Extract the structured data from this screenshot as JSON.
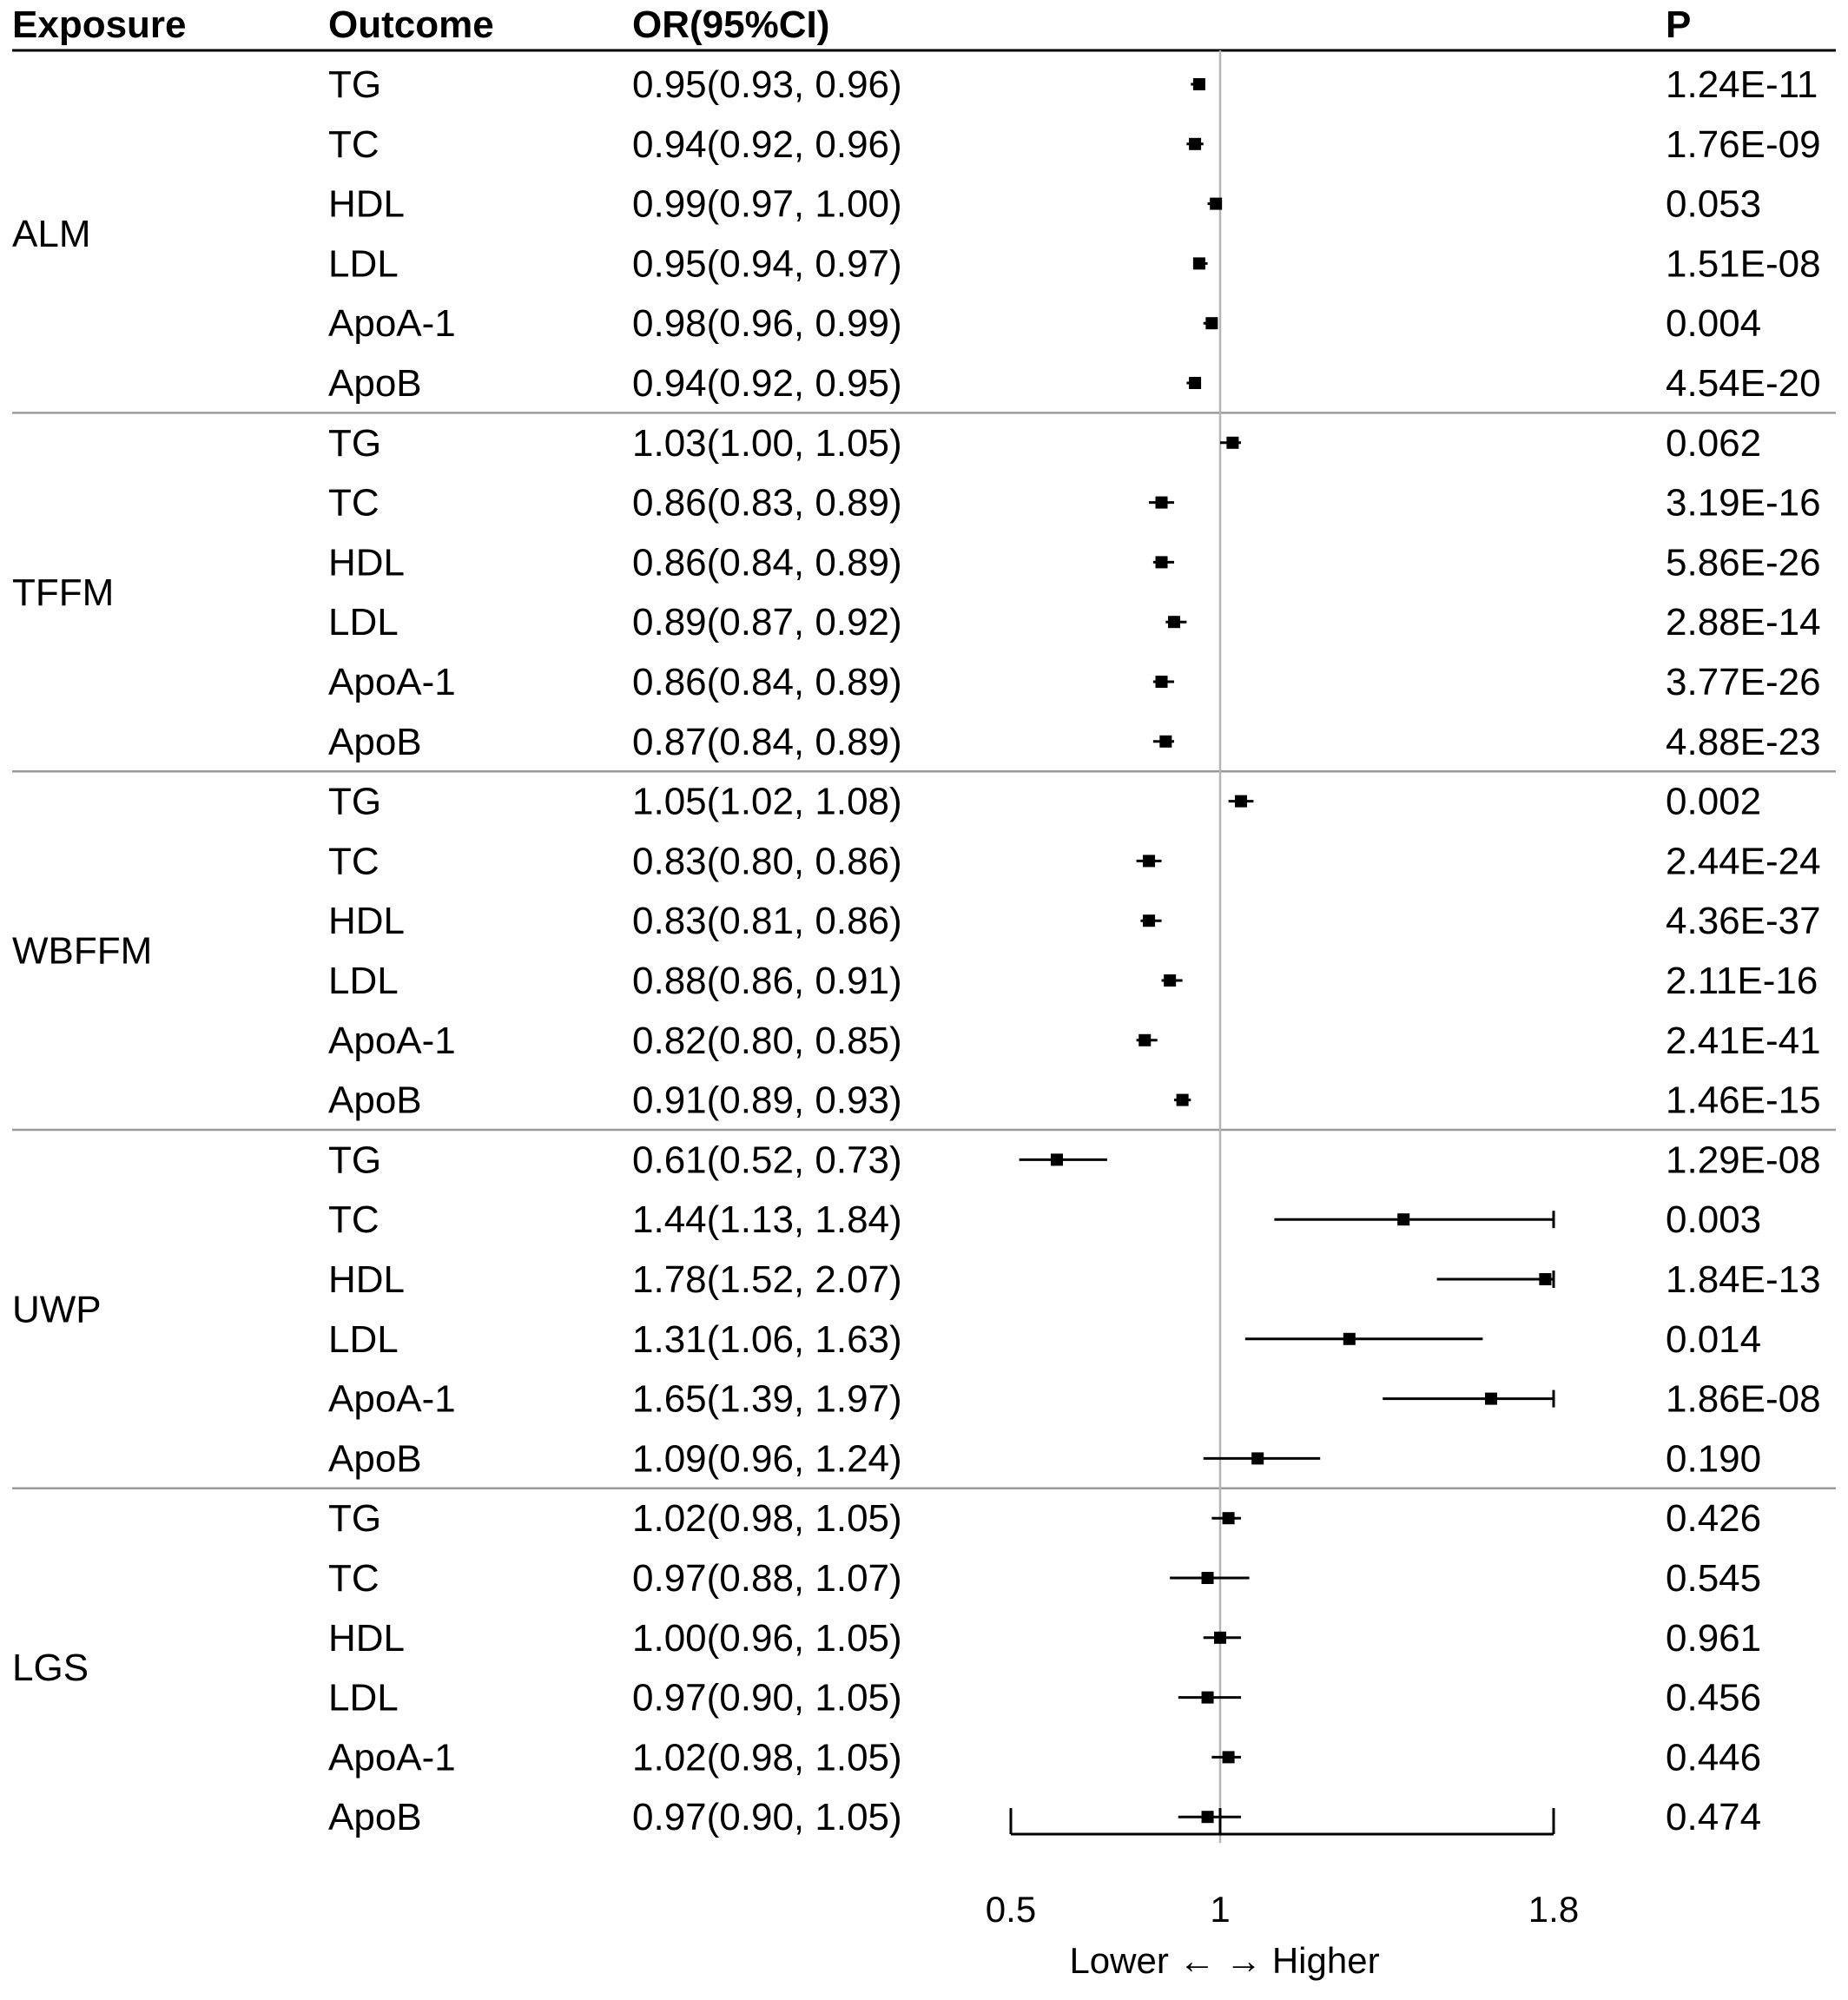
{
  "headers": {
    "exposure": "Exposure",
    "outcome": "Outcome",
    "or_ci": "OR(95%CI)",
    "p": "P"
  },
  "chart_data": {
    "type": "forest",
    "xlim": [
      0.5,
      1.8
    ],
    "reference_line": 1,
    "x_ticks": [
      "0.5",
      "1",
      "1.8"
    ],
    "xlabel": "Lower ← → Higher",
    "groups": [
      {
        "exposure": "ALM",
        "rows": [
          {
            "outcome": "TG",
            "or": 0.95,
            "lo": 0.93,
            "hi": 0.96,
            "label": "0.95(0.93, 0.96)",
            "p": "1.24E-11"
          },
          {
            "outcome": "TC",
            "or": 0.94,
            "lo": 0.92,
            "hi": 0.96,
            "label": "0.94(0.92, 0.96)",
            "p": "1.76E-09"
          },
          {
            "outcome": "HDL",
            "or": 0.99,
            "lo": 0.97,
            "hi": 1.0,
            "label": "0.99(0.97, 1.00)",
            "p": "0.053"
          },
          {
            "outcome": "LDL",
            "or": 0.95,
            "lo": 0.94,
            "hi": 0.97,
            "label": "0.95(0.94, 0.97)",
            "p": "1.51E-08"
          },
          {
            "outcome": "ApoA-1",
            "or": 0.98,
            "lo": 0.96,
            "hi": 0.99,
            "label": "0.98(0.96, 0.99)",
            "p": "0.004"
          },
          {
            "outcome": "ApoB",
            "or": 0.94,
            "lo": 0.92,
            "hi": 0.95,
            "label": "0.94(0.92, 0.95)",
            "p": "4.54E-20"
          }
        ]
      },
      {
        "exposure": "TFFM",
        "rows": [
          {
            "outcome": "TG",
            "or": 1.03,
            "lo": 1.0,
            "hi": 1.05,
            "label": "1.03(1.00, 1.05)",
            "p": "0.062"
          },
          {
            "outcome": "TC",
            "or": 0.86,
            "lo": 0.83,
            "hi": 0.89,
            "label": "0.86(0.83, 0.89)",
            "p": "3.19E-16"
          },
          {
            "outcome": "HDL",
            "or": 0.86,
            "lo": 0.84,
            "hi": 0.89,
            "label": "0.86(0.84, 0.89)",
            "p": "5.86E-26"
          },
          {
            "outcome": "LDL",
            "or": 0.89,
            "lo": 0.87,
            "hi": 0.92,
            "label": "0.89(0.87, 0.92)",
            "p": "2.88E-14"
          },
          {
            "outcome": "ApoA-1",
            "or": 0.86,
            "lo": 0.84,
            "hi": 0.89,
            "label": "0.86(0.84, 0.89)",
            "p": "3.77E-26"
          },
          {
            "outcome": "ApoB",
            "or": 0.87,
            "lo": 0.84,
            "hi": 0.89,
            "label": "0.87(0.84, 0.89)",
            "p": "4.88E-23"
          }
        ]
      },
      {
        "exposure": "WBFFM",
        "rows": [
          {
            "outcome": "TG",
            "or": 1.05,
            "lo": 1.02,
            "hi": 1.08,
            "label": "1.05(1.02, 1.08)",
            "p": "0.002"
          },
          {
            "outcome": "TC",
            "or": 0.83,
            "lo": 0.8,
            "hi": 0.86,
            "label": "0.83(0.80, 0.86)",
            "p": "2.44E-24"
          },
          {
            "outcome": "HDL",
            "or": 0.83,
            "lo": 0.81,
            "hi": 0.86,
            "label": "0.83(0.81, 0.86)",
            "p": "4.36E-37"
          },
          {
            "outcome": "LDL",
            "or": 0.88,
            "lo": 0.86,
            "hi": 0.91,
            "label": "0.88(0.86, 0.91)",
            "p": "2.11E-16"
          },
          {
            "outcome": "ApoA-1",
            "or": 0.82,
            "lo": 0.8,
            "hi": 0.85,
            "label": "0.82(0.80, 0.85)",
            "p": "2.41E-41"
          },
          {
            "outcome": "ApoB",
            "or": 0.91,
            "lo": 0.89,
            "hi": 0.93,
            "label": "0.91(0.89, 0.93)",
            "p": "1.46E-15"
          }
        ]
      },
      {
        "exposure": "UWP",
        "rows": [
          {
            "outcome": "TG",
            "or": 0.61,
            "lo": 0.52,
            "hi": 0.73,
            "label": "0.61(0.52, 0.73)",
            "p": "1.29E-08"
          },
          {
            "outcome": "TC",
            "or": 1.44,
            "lo": 1.13,
            "hi": 1.84,
            "label": "1.44(1.13, 1.84)",
            "p": "0.003"
          },
          {
            "outcome": "HDL",
            "or": 1.78,
            "lo": 1.52,
            "hi": 2.07,
            "label": "1.78(1.52, 2.07)",
            "p": "1.84E-13"
          },
          {
            "outcome": "LDL",
            "or": 1.31,
            "lo": 1.06,
            "hi": 1.63,
            "label": "1.31(1.06, 1.63)",
            "p": "0.014"
          },
          {
            "outcome": "ApoA-1",
            "or": 1.65,
            "lo": 1.39,
            "hi": 1.97,
            "label": "1.65(1.39, 1.97)",
            "p": "1.86E-08"
          },
          {
            "outcome": "ApoB",
            "or": 1.09,
            "lo": 0.96,
            "hi": 1.24,
            "label": "1.09(0.96, 1.24)",
            "p": "0.190"
          }
        ]
      },
      {
        "exposure": "LGS",
        "rows": [
          {
            "outcome": "TG",
            "or": 1.02,
            "lo": 0.98,
            "hi": 1.05,
            "label": "1.02(0.98, 1.05)",
            "p": "0.426"
          },
          {
            "outcome": "TC",
            "or": 0.97,
            "lo": 0.88,
            "hi": 1.07,
            "label": "0.97(0.88, 1.07)",
            "p": "0.545"
          },
          {
            "outcome": "HDL",
            "or": 1.0,
            "lo": 0.96,
            "hi": 1.05,
            "label": "1.00(0.96, 1.05)",
            "p": "0.961"
          },
          {
            "outcome": "LDL",
            "or": 0.97,
            "lo": 0.9,
            "hi": 1.05,
            "label": "0.97(0.90, 1.05)",
            "p": "0.456"
          },
          {
            "outcome": "ApoA-1",
            "or": 1.02,
            "lo": 0.98,
            "hi": 1.05,
            "label": "1.02(0.98, 1.05)",
            "p": "0.446"
          },
          {
            "outcome": "ApoB",
            "or": 0.97,
            "lo": 0.9,
            "hi": 1.05,
            "label": "0.97(0.90, 1.05)",
            "p": "0.474"
          }
        ]
      }
    ]
  }
}
